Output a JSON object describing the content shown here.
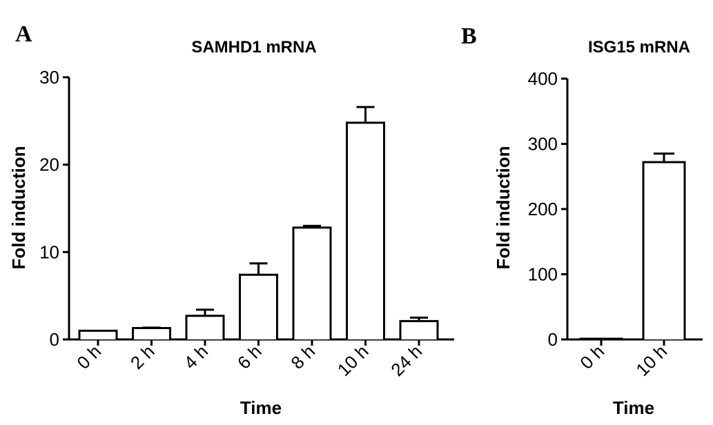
{
  "panels": [
    {
      "panel_label": "A",
      "chart_data": {
        "type": "bar",
        "title": "SAMHD1 mRNA",
        "xlabel": "Time",
        "ylabel": "Fold induction",
        "categories": [
          "0 h",
          "2 h",
          "4 h",
          "6 h",
          "8 h",
          "10 h",
          "24 h"
        ],
        "values": [
          1.0,
          1.3,
          2.7,
          7.4,
          12.8,
          24.8,
          2.1
        ],
        "errors": [
          0.0,
          0.05,
          0.7,
          1.3,
          0.2,
          1.8,
          0.4
        ],
        "ylim": [
          0,
          30
        ],
        "yticks": [
          0,
          10,
          20,
          30
        ],
        "grid": false,
        "error_bars": "upper"
      }
    },
    {
      "panel_label": "B",
      "chart_data": {
        "type": "bar",
        "title": "ISG15 mRNA",
        "xlabel": "Time",
        "ylabel": "Fold induction",
        "categories": [
          "0 h",
          "10 h"
        ],
        "values": [
          1,
          272
        ],
        "errors": [
          0,
          13
        ],
        "ylim": [
          0,
          400
        ],
        "yticks": [
          0,
          100,
          200,
          300,
          400
        ],
        "grid": false,
        "error_bars": "upper"
      }
    }
  ]
}
